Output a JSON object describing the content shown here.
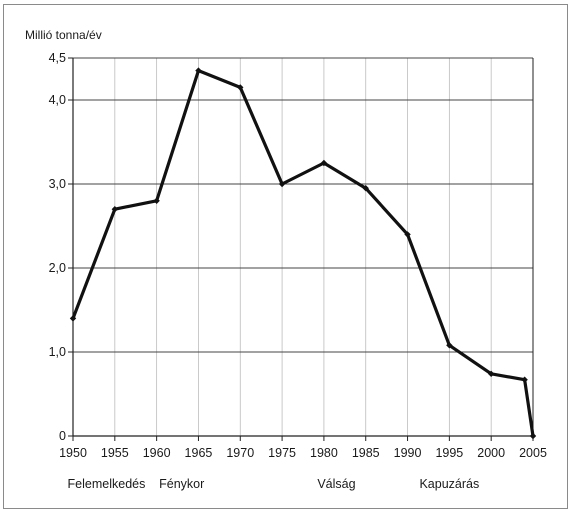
{
  "chart_data": {
    "type": "line",
    "ylabel": "Millió tonna/év",
    "xlabel": "",
    "title": "",
    "x": [
      1950,
      1955,
      1960,
      1965,
      1970,
      1975,
      1980,
      1985,
      1990,
      1995,
      2000,
      2004,
      2005
    ],
    "values": [
      1.4,
      2.7,
      2.8,
      4.35,
      4.15,
      3.0,
      3.25,
      2.95,
      2.4,
      1.08,
      0.74,
      0.67,
      0.0
    ],
    "xlim": [
      1950,
      2005
    ],
    "ylim": [
      0,
      4.5
    ],
    "x_ticks": [
      "1950",
      "1955",
      "1960",
      "1965",
      "1970",
      "1975",
      "1980",
      "1985",
      "1990",
      "1995",
      "2000",
      "2005"
    ],
    "y_ticks": [
      {
        "value": 0,
        "label": "0"
      },
      {
        "value": 1.0,
        "label": "1,0"
      },
      {
        "value": 2.0,
        "label": "2,0"
      },
      {
        "value": 3.0,
        "label": "3,0"
      },
      {
        "value": 4.0,
        "label": "4,0"
      },
      {
        "value": 4.5,
        "label": "4,5"
      }
    ],
    "grid": true,
    "periods": [
      {
        "label": "Felemelkedés",
        "center_year": 1954
      },
      {
        "label": "Fénykor",
        "center_year": 1963
      },
      {
        "label": "Válság",
        "center_year": 1981.5
      },
      {
        "label": "Kapuzárás",
        "center_year": 1995
      }
    ],
    "colors": {
      "line": "#111111",
      "grid": "#444444",
      "vgrid": "#bdbdbd",
      "axis": "#222222"
    }
  }
}
